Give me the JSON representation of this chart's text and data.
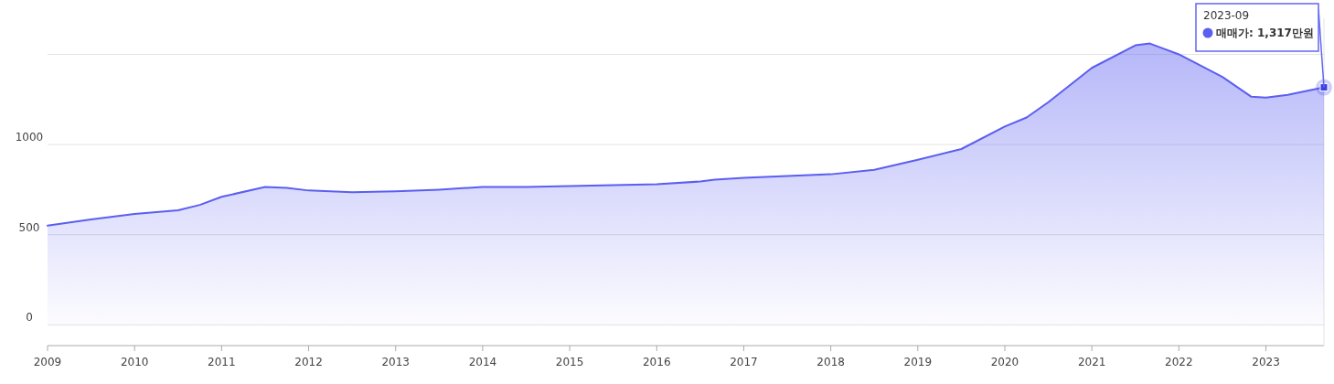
{
  "chart_data": {
    "type": "area",
    "x": [
      "2009-01",
      "2009-07",
      "2010-01",
      "2010-07",
      "2010-10",
      "2011-01",
      "2011-07",
      "2011-10",
      "2012-01",
      "2012-07",
      "2013-01",
      "2013-07",
      "2014-01",
      "2014-07",
      "2015-01",
      "2015-07",
      "2016-01",
      "2016-07",
      "2016-09",
      "2017-01",
      "2017-07",
      "2018-01",
      "2018-07",
      "2019-01",
      "2019-07",
      "2020-01",
      "2020-04",
      "2020-07",
      "2021-01",
      "2021-07",
      "2021-09",
      "2022-01",
      "2022-07",
      "2022-11",
      "2023-01",
      "2023-04",
      "2023-09"
    ],
    "series": [
      {
        "color": "#5b5ef0",
        "values": [
          550,
          585,
          615,
          635,
          665,
          710,
          765,
          760,
          745,
          735,
          740,
          750,
          765,
          765,
          770,
          775,
          780,
          795,
          805,
          815,
          825,
          835,
          860,
          915,
          975,
          1100,
          1150,
          1235,
          1425,
          1550,
          1560,
          1500,
          1375,
          1265,
          1260,
          1275,
          1317
        ]
      }
    ],
    "xlim": [
      "2009-01",
      "2023-09"
    ],
    "xticks": [
      "2009",
      "2010",
      "2011",
      "2012",
      "2013",
      "2014",
      "2015",
      "2016",
      "2017",
      "2018",
      "2019",
      "2020",
      "2021",
      "2022",
      "2023"
    ],
    "ylim": [
      -115,
      1700
    ],
    "yticks": [
      0,
      500,
      1000,
      {
        "value": 1500,
        "label": null
      }
    ],
    "grid": "y",
    "annotations": [
      "2023-09",
      "매매가: 1,317만원"
    ]
  }
}
